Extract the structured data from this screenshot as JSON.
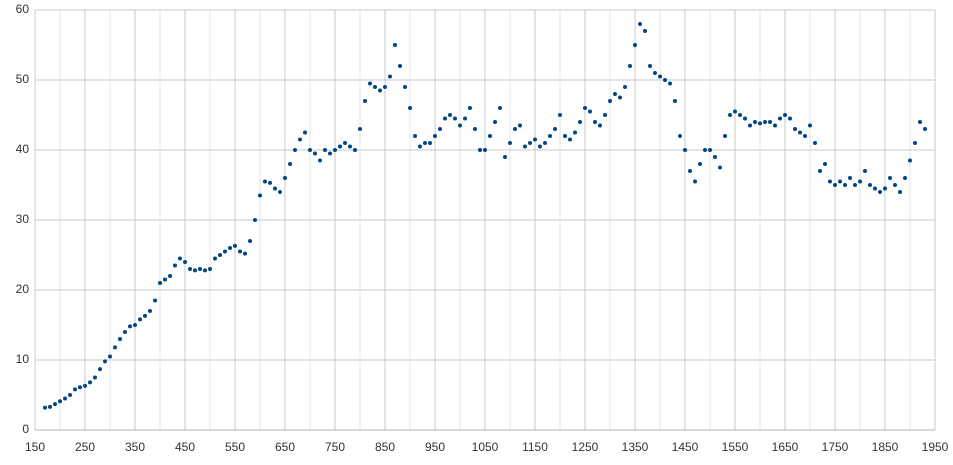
{
  "chart_data": {
    "type": "scatter",
    "color": "#004586",
    "x": [
      170,
      180,
      190,
      200,
      210,
      220,
      230,
      240,
      250,
      260,
      270,
      280,
      290,
      300,
      310,
      320,
      330,
      340,
      350,
      360,
      370,
      380,
      390,
      400,
      410,
      420,
      430,
      440,
      450,
      460,
      470,
      480,
      490,
      500,
      510,
      520,
      530,
      540,
      550,
      560,
      570,
      580,
      590,
      600,
      610,
      620,
      630,
      640,
      650,
      660,
      670,
      680,
      690,
      700,
      710,
      720,
      730,
      740,
      750,
      760,
      770,
      780,
      790,
      800,
      810,
      820,
      830,
      840,
      850,
      860,
      870,
      880,
      890,
      900,
      910,
      920,
      930,
      940,
      950,
      960,
      970,
      980,
      990,
      1000,
      1010,
      1020,
      1030,
      1040,
      1050,
      1060,
      1070,
      1080,
      1090,
      1100,
      1110,
      1120,
      1130,
      1140,
      1150,
      1160,
      1170,
      1180,
      1190,
      1200,
      1210,
      1220,
      1230,
      1240,
      1250,
      1260,
      1270,
      1280,
      1290,
      1300,
      1310,
      1320,
      1330,
      1340,
      1350,
      1360,
      1370,
      1380,
      1390,
      1400,
      1410,
      1420,
      1430,
      1440,
      1450,
      1460,
      1470,
      1480,
      1490,
      1500,
      1510,
      1520,
      1530,
      1540,
      1550,
      1560,
      1570,
      1580,
      1590,
      1600,
      1610,
      1620,
      1630,
      1640,
      1650,
      1660,
      1670,
      1680,
      1690,
      1700,
      1710,
      1720,
      1730,
      1740,
      1750,
      1760,
      1770,
      1780,
      1790,
      1800,
      1810,
      1820,
      1830,
      1840,
      1850,
      1860,
      1870,
      1880,
      1890,
      1900,
      1910,
      1920,
      1930
    ],
    "values": [
      3.2,
      3.3,
      3.7,
      4.1,
      4.5,
      5.0,
      5.8,
      6.1,
      6.3,
      6.8,
      7.5,
      8.7,
      9.8,
      10.5,
      11.8,
      13,
      14,
      14.8,
      15,
      15.8,
      16.3,
      17,
      18.5,
      21,
      21.5,
      22,
      23.5,
      24.5,
      24,
      23,
      22.8,
      23,
      22.8,
      23,
      24.5,
      25,
      25.5,
      26,
      26.3,
      25.5,
      25.2,
      27,
      30,
      33.5,
      35.5,
      35.3,
      34.5,
      34,
      36,
      38,
      40,
      41.5,
      42.5,
      40,
      39.5,
      38.5,
      40,
      39.5,
      40,
      40.5,
      41,
      40.5,
      40,
      43,
      47,
      49.5,
      49,
      48.5,
      49,
      50.5,
      55,
      52,
      49,
      46,
      42,
      40.5,
      41,
      41,
      42,
      43,
      44.5,
      45,
      44.5,
      43.5,
      44.5,
      46,
      43,
      40,
      40,
      42,
      44,
      46,
      39,
      41,
      43,
      43.5,
      40.5,
      41,
      41.5,
      40.5,
      41,
      42,
      43,
      45,
      42,
      41.5,
      42.5,
      44,
      46,
      45.5,
      44,
      43.5,
      45,
      47,
      48,
      47.5,
      49,
      52,
      55,
      58,
      57,
      52,
      51,
      50.5,
      50,
      49.5,
      47,
      42,
      40,
      37,
      35.5,
      38,
      40,
      40,
      39,
      37.5,
      42,
      45,
      45.5,
      45,
      44.5,
      43.5,
      44,
      43.8,
      44,
      44,
      43.5,
      44.5,
      45,
      44.5,
      43,
      42.5,
      42,
      43.5,
      41,
      37,
      38,
      35.5,
      35,
      35.5,
      35,
      36,
      35,
      35.5,
      37,
      35,
      34.5,
      34,
      34.5,
      36,
      35,
      34,
      36,
      38.5,
      41,
      44,
      43
    ],
    "xlim": [
      150,
      1950
    ],
    "xticks": [
      150,
      250,
      350,
      450,
      550,
      650,
      750,
      850,
      950,
      1050,
      1150,
      1250,
      1350,
      1450,
      1550,
      1650,
      1750,
      1850,
      1950
    ],
    "xminor": [
      200,
      300,
      400,
      500,
      600,
      700,
      800,
      900,
      1000,
      1100,
      1200,
      1300,
      1400,
      1500,
      1600,
      1700,
      1800,
      1900
    ],
    "ylim": [
      0,
      60
    ],
    "yticks": [
      0,
      10,
      20,
      30,
      40,
      50,
      60
    ],
    "grid": true
  }
}
